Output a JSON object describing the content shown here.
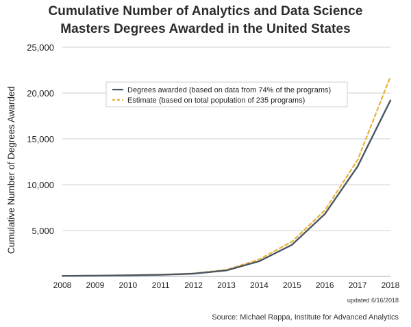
{
  "chart_data": {
    "type": "line",
    "title": [
      "Cumulative Number of Analytics and Data Science",
      "Masters Degrees Awarded in the United States"
    ],
    "xlabel": "",
    "ylabel": "Cumulative Number of Degrees Awarded",
    "categories": [
      "2008",
      "2009",
      "2010",
      "2011",
      "2012",
      "2013",
      "2014",
      "2015",
      "2016",
      "2017",
      "2018"
    ],
    "ylim": [
      0,
      25000
    ],
    "yticks": [
      5000,
      10000,
      15000,
      20000,
      25000
    ],
    "ytick_labels": [
      "5,000",
      "10,000",
      "15,000",
      "20,000",
      "25,000"
    ],
    "grid": true,
    "series": [
      {
        "name": "Degrees awarded (based on data from 74% of the programs)",
        "style": "solid",
        "color": "#4a5663",
        "values": [
          50,
          80,
          120,
          170,
          300,
          650,
          1650,
          3450,
          6800,
          12000,
          19200
        ]
      },
      {
        "name": "Estimate (based on total population of 235 programs)",
        "style": "dashed",
        "color": "#e8b23a",
        "values": [
          50,
          85,
          130,
          190,
          330,
          720,
          1850,
          3800,
          7200,
          12700,
          21800
        ]
      }
    ],
    "legend_position": "top-center"
  },
  "annotations": {
    "updated": "updated 6/16/2018",
    "source": "Source: Michael Rappa, Institute for Advanced Analytics"
  }
}
